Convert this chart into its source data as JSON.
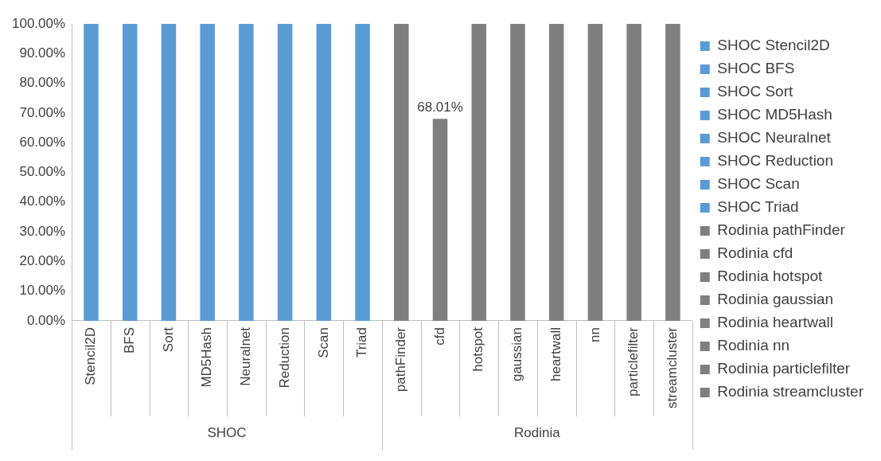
{
  "chart_data": {
    "type": "bar",
    "categories": [
      "Stencil2D",
      "BFS",
      "Sort",
      "MD5Hash",
      "Neuralnet",
      "Reduction",
      "Scan",
      "Triad",
      "pathFinder",
      "cfd",
      "hotspot",
      "gaussian",
      "heartwall",
      "nn",
      "particlefilter",
      "streamcluster"
    ],
    "series": [
      {
        "name": "SHOC Stencil2D",
        "color": "#5b9bd5",
        "values": [
          100,
          null,
          null,
          null,
          null,
          null,
          null,
          null,
          null,
          null,
          null,
          null,
          null,
          null,
          null,
          null
        ]
      },
      {
        "name": "SHOC BFS",
        "color": "#5b9bd5",
        "values": [
          null,
          100,
          null,
          null,
          null,
          null,
          null,
          null,
          null,
          null,
          null,
          null,
          null,
          null,
          null,
          null
        ]
      },
      {
        "name": "SHOC Sort",
        "color": "#5b9bd5",
        "values": [
          null,
          null,
          100,
          null,
          null,
          null,
          null,
          null,
          null,
          null,
          null,
          null,
          null,
          null,
          null,
          null
        ]
      },
      {
        "name": "SHOC MD5Hash",
        "color": "#5b9bd5",
        "values": [
          null,
          null,
          null,
          100,
          null,
          null,
          null,
          null,
          null,
          null,
          null,
          null,
          null,
          null,
          null,
          null
        ]
      },
      {
        "name": "SHOC Neuralnet",
        "color": "#5b9bd5",
        "values": [
          null,
          null,
          null,
          null,
          100,
          null,
          null,
          null,
          null,
          null,
          null,
          null,
          null,
          null,
          null,
          null
        ]
      },
      {
        "name": "SHOC Reduction",
        "color": "#5b9bd5",
        "values": [
          null,
          null,
          null,
          null,
          null,
          100,
          null,
          null,
          null,
          null,
          null,
          null,
          null,
          null,
          null,
          null
        ]
      },
      {
        "name": "SHOC Scan",
        "color": "#5b9bd5",
        "values": [
          null,
          null,
          null,
          null,
          null,
          null,
          100,
          null,
          null,
          null,
          null,
          null,
          null,
          null,
          null,
          null
        ]
      },
      {
        "name": "SHOC Triad",
        "color": "#5b9bd5",
        "values": [
          null,
          null,
          null,
          null,
          null,
          null,
          null,
          100,
          null,
          null,
          null,
          null,
          null,
          null,
          null,
          null
        ]
      },
      {
        "name": "Rodinia pathFinder",
        "color": "#7f7f7f",
        "values": [
          null,
          null,
          null,
          null,
          null,
          null,
          null,
          null,
          100,
          null,
          null,
          null,
          null,
          null,
          null,
          null
        ]
      },
      {
        "name": "Rodinia cfd",
        "color": "#7f7f7f",
        "values": [
          null,
          null,
          null,
          null,
          null,
          null,
          null,
          null,
          null,
          68.01,
          null,
          null,
          null,
          null,
          null,
          null
        ],
        "value_labels": [
          null,
          null,
          null,
          null,
          null,
          null,
          null,
          null,
          null,
          "68.01%",
          null,
          null,
          null,
          null,
          null,
          null
        ]
      },
      {
        "name": "Rodinia hotspot",
        "color": "#7f7f7f",
        "values": [
          null,
          null,
          null,
          null,
          null,
          null,
          null,
          null,
          null,
          null,
          100,
          null,
          null,
          null,
          null,
          null
        ]
      },
      {
        "name": "Rodinia gaussian",
        "color": "#7f7f7f",
        "values": [
          null,
          null,
          null,
          null,
          null,
          null,
          null,
          null,
          null,
          null,
          null,
          100,
          null,
          null,
          null,
          null
        ]
      },
      {
        "name": "Rodinia heartwall",
        "color": "#7f7f7f",
        "values": [
          null,
          null,
          null,
          null,
          null,
          null,
          null,
          null,
          null,
          null,
          null,
          null,
          100,
          null,
          null,
          null
        ]
      },
      {
        "name": "Rodinia nn",
        "color": "#7f7f7f",
        "values": [
          null,
          null,
          null,
          null,
          null,
          null,
          null,
          null,
          null,
          null,
          null,
          null,
          null,
          100,
          null,
          null
        ]
      },
      {
        "name": "Rodinia particlefilter",
        "color": "#7f7f7f",
        "values": [
          null,
          null,
          null,
          null,
          null,
          null,
          null,
          null,
          null,
          null,
          null,
          null,
          null,
          null,
          100,
          null
        ]
      },
      {
        "name": "Rodinia streamcluster",
        "color": "#7f7f7f",
        "values": [
          null,
          null,
          null,
          null,
          null,
          null,
          null,
          null,
          null,
          null,
          null,
          null,
          null,
          null,
          null,
          100
        ]
      }
    ],
    "ylim": [
      0,
      100
    ],
    "yticks": [
      {
        "value": 0,
        "label": "0.00%"
      },
      {
        "value": 10,
        "label": "10.00%"
      },
      {
        "value": 20,
        "label": "20.00%"
      },
      {
        "value": 30,
        "label": "30.00%"
      },
      {
        "value": 40,
        "label": "40.00%"
      },
      {
        "value": 50,
        "label": "50.00%"
      },
      {
        "value": 60,
        "label": "60.00%"
      },
      {
        "value": 70,
        "label": "70.00%"
      },
      {
        "value": 80,
        "label": "80.00%"
      },
      {
        "value": 90,
        "label": "90.00%"
      },
      {
        "value": 100,
        "label": "100.00%"
      }
    ],
    "annotations": [
      "SHOC",
      "Rodinia"
    ],
    "grid": false,
    "legend": "right"
  }
}
